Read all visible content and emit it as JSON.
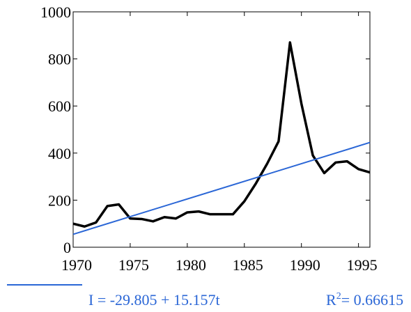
{
  "chart_data": {
    "type": "line",
    "xlim": [
      1970,
      1996
    ],
    "xticks": [
      1970,
      1975,
      1980,
      1985,
      1990,
      1995
    ],
    "ylim": [
      0,
      1000
    ],
    "yticks": [
      0,
      200,
      400,
      600,
      800,
      1000
    ],
    "series": [
      {
        "color": "#000000",
        "x": [
          1970,
          1971,
          1972,
          1973,
          1974,
          1975,
          1976,
          1977,
          1978,
          1979,
          1980,
          1981,
          1982,
          1983,
          1984,
          1985,
          1986,
          1987,
          1988,
          1989,
          1990,
          1991,
          1992,
          1993,
          1994,
          1995,
          1996
        ],
        "values": [
          100,
          88,
          105,
          175,
          182,
          122,
          120,
          110,
          128,
          122,
          148,
          152,
          140,
          140,
          140,
          195,
          270,
          355,
          450,
          870,
          610,
          390,
          315,
          360,
          365,
          332,
          318
        ]
      },
      {
        "name": "I = -29.805 + 15.157t",
        "color": "#2a66d6",
        "x": [
          1970,
          1996
        ],
        "values": [
          55,
          445
        ]
      }
    ],
    "r_squared": {
      "symbol": "R",
      "exponent": "2",
      "value": "= 0.66615"
    }
  }
}
